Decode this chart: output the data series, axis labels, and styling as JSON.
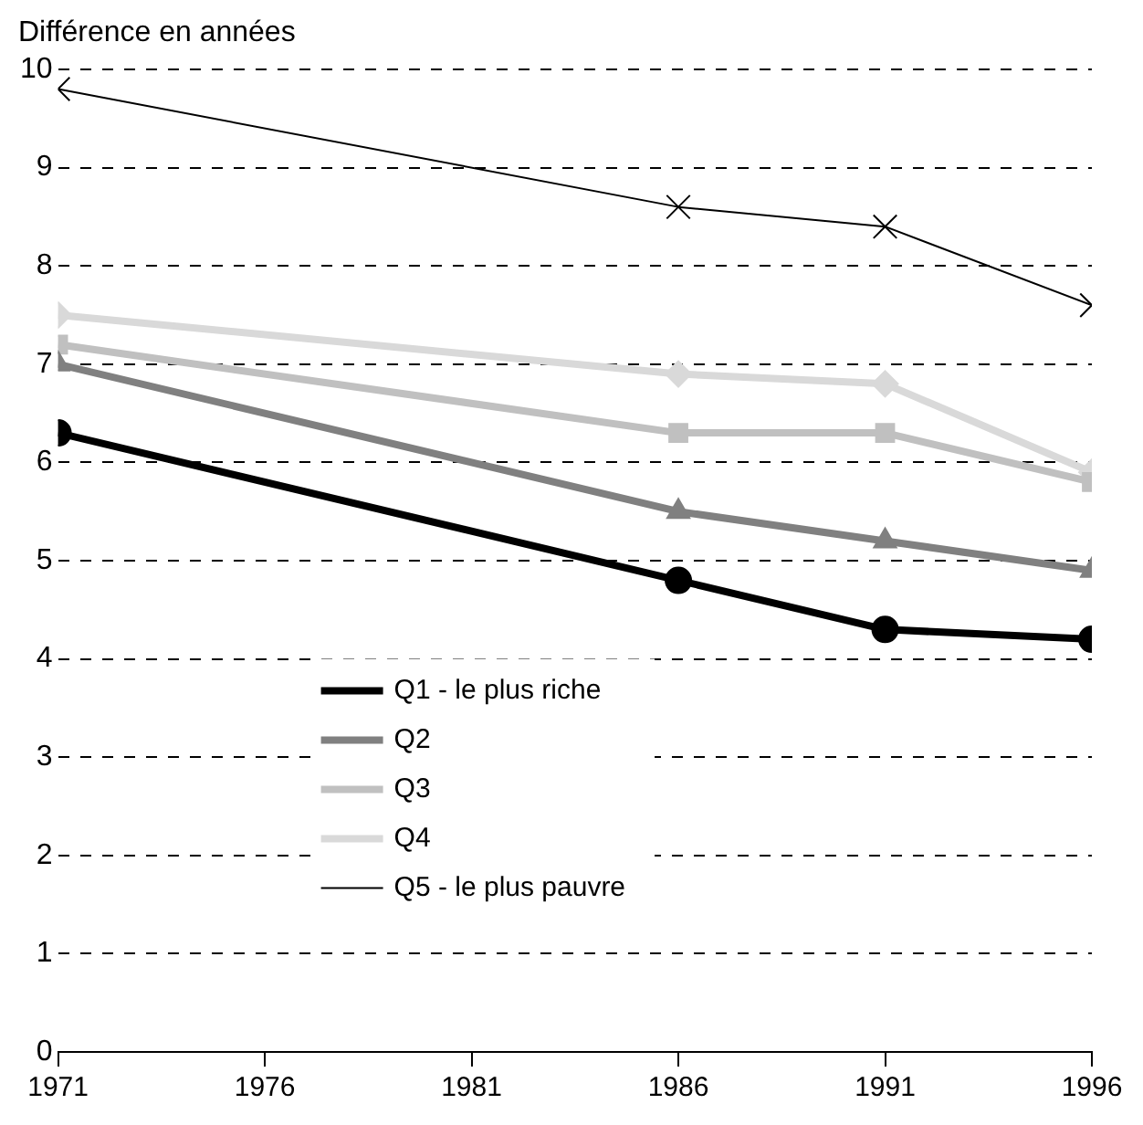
{
  "chart_data": {
    "type": "line",
    "ylabel": "Différence en années",
    "x": [
      1971,
      1986,
      1991,
      1996
    ],
    "xlim": [
      1971,
      1996
    ],
    "xticks": [
      1971,
      1976,
      1981,
      1986,
      1991,
      1996
    ],
    "ylim": [
      0,
      10
    ],
    "yticks": [
      0,
      1,
      2,
      3,
      4,
      5,
      6,
      7,
      8,
      9,
      10
    ],
    "grid": "y",
    "legend": "left",
    "line_style": "solid",
    "series": [
      {
        "name": "Q1 - le plus riche",
        "color": "#000000",
        "marker": "circle",
        "values": [
          6.3,
          4.8,
          4.3,
          4.2
        ]
      },
      {
        "name": "Q2",
        "color": "#808080",
        "marker": "triangle",
        "values": [
          7.0,
          5.5,
          5.2,
          4.9
        ]
      },
      {
        "name": "Q3",
        "color": "#c0c0c0",
        "marker": "square",
        "values": [
          7.2,
          6.3,
          6.3,
          5.8
        ]
      },
      {
        "name": "Q4",
        "color": "#d9d9d9",
        "marker": "diamond",
        "values": [
          7.5,
          6.9,
          6.8,
          5.9
        ]
      },
      {
        "name": "Q5 - le plus pauvre",
        "color": "#000000",
        "marker": "cross",
        "values": [
          9.8,
          8.6,
          8.4,
          7.6
        ]
      }
    ]
  }
}
